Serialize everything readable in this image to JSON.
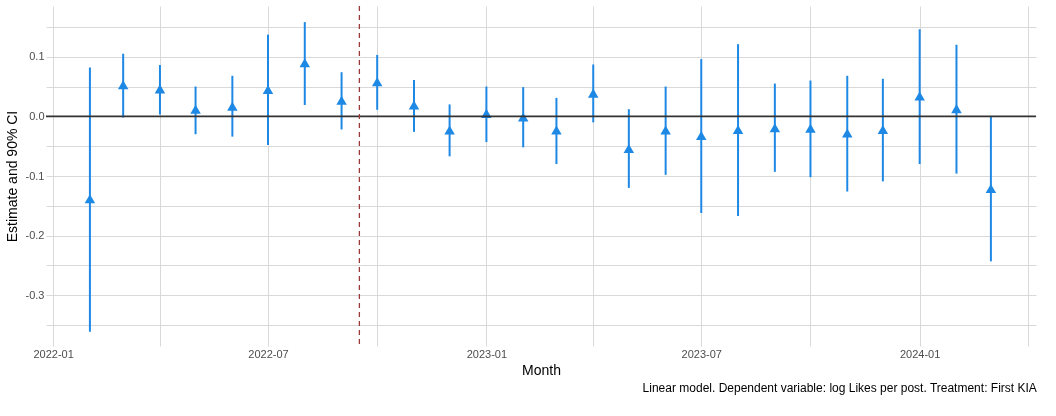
{
  "chart_data": {
    "type": "scatter",
    "xlabel": "Month",
    "ylabel": "Estimate and 90% CI",
    "annotations": [
      "Linear model. Dependent variable: log Likes per post. Treatment: First KIA"
    ],
    "x": [
      "2022-02",
      "2022-03",
      "2022-04",
      "2022-05",
      "2022-06",
      "2022-07",
      "2022-08",
      "2022-09",
      "2022-10",
      "2022-11",
      "2022-12",
      "2023-01",
      "2023-02",
      "2023-03",
      "2023-04",
      "2023-05",
      "2023-06",
      "2023-07",
      "2023-08",
      "2023-09",
      "2023-10",
      "2023-11",
      "2023-12",
      "2024-01",
      "2024-02",
      "2024-03"
    ],
    "series": [
      {
        "color": "#1e88e5",
        "values": [
          -0.138,
          0.053,
          0.046,
          0.012,
          0.017,
          0.045,
          0.09,
          0.027,
          0.058,
          0.019,
          -0.023,
          0.005,
          -0.001,
          -0.023,
          0.039,
          -0.054,
          -0.023,
          -0.032,
          -0.022,
          -0.019,
          -0.02,
          -0.028,
          -0.022,
          0.034,
          0.013,
          -0.121
        ],
        "errors": [
          [
            -0.361,
            0.082
          ],
          [
            -0.002,
            0.105
          ],
          [
            0.003,
            0.086
          ],
          [
            -0.03,
            0.05
          ],
          [
            -0.034,
            0.068
          ],
          [
            -0.048,
            0.137
          ],
          [
            0.019,
            0.158
          ],
          [
            -0.022,
            0.074
          ],
          [
            0.011,
            0.103
          ],
          [
            -0.026,
            0.061
          ],
          [
            -0.067,
            0.02
          ],
          [
            -0.043,
            0.05
          ],
          [
            -0.052,
            0.049
          ],
          [
            -0.08,
            0.031
          ],
          [
            -0.01,
            0.087
          ],
          [
            -0.12,
            0.012
          ],
          [
            -0.098,
            0.05
          ],
          [
            -0.162,
            0.096
          ],
          [
            -0.167,
            0.121
          ],
          [
            -0.093,
            0.055
          ],
          [
            -0.102,
            0.06
          ],
          [
            -0.126,
            0.068
          ],
          [
            -0.109,
            0.063
          ],
          [
            -0.08,
            0.146
          ],
          [
            -0.096,
            0.12
          ],
          [
            -0.243,
            -0.001
          ]
        ]
      }
    ],
    "marker": "triangle",
    "xlim": [
      "2021-12-26",
      "2024-04-08"
    ],
    "xticks": [
      {
        "value": "2022-01",
        "label": "2022-01"
      },
      {
        "value": "2022-04",
        "label": null
      },
      {
        "value": "2022-07",
        "label": "2022-07"
      },
      {
        "value": "2022-10",
        "label": null
      },
      {
        "value": "2023-01",
        "label": "2023-01"
      },
      {
        "value": "2023-04",
        "label": null
      },
      {
        "value": "2023-07",
        "label": "2023-07"
      },
      {
        "value": "2023-10",
        "label": null
      },
      {
        "value": "2024-01",
        "label": "2024-01"
      },
      {
        "value": "2024-04",
        "label": null
      }
    ],
    "ylim": [
      -0.385,
      0.185
    ],
    "yticks": [
      {
        "value": -0.35,
        "label": null
      },
      -0.3,
      {
        "value": -0.25,
        "label": null
      },
      -0.2,
      {
        "value": -0.15,
        "label": null
      },
      -0.1,
      {
        "value": -0.05,
        "label": null
      },
      {
        "value": 0,
        "label": "0.0"
      },
      {
        "value": 0.05,
        "label": null
      },
      0.1,
      {
        "value": 0.15,
        "label": null
      }
    ],
    "grid": true,
    "ref_lines": [
      {
        "axis": "y",
        "value": 0,
        "color": "#333333"
      },
      {
        "axis": "x",
        "value": "2022-09-16",
        "color": "#9b3a3a",
        "line_style": "dashed"
      }
    ]
  }
}
